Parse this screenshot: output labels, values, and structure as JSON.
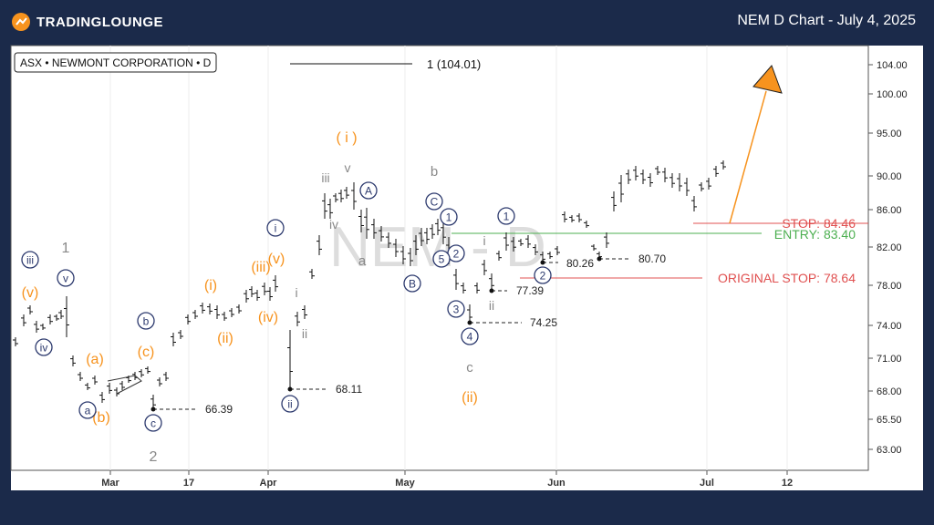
{
  "header": {
    "logo_text": "TRADINGLOUNGE",
    "title": "NEM D Chart - July 4, 2025",
    "logo_color": "#f7931e"
  },
  "colors": {
    "background": "#1b2a4a",
    "orange": "#f7931e",
    "navy": "#2d3a6e",
    "gray": "#888888",
    "stop_red": "#e05050",
    "entry_green": "#4caf50"
  },
  "chart_data": {
    "type": "ohlc",
    "symbol_label": "ASX • NEWMONT CORPORATION • D",
    "watermark": "NEM - D",
    "y_ticks": [
      "104.00",
      "100.00",
      "95.00",
      "90.00",
      "86.00",
      "82.00",
      "78.00",
      "74.00",
      "71.00",
      "68.00",
      "65.50",
      "63.00"
    ],
    "x_ticks": [
      "Mar",
      "17",
      "Apr",
      "May",
      "Jun",
      "Jul",
      "12"
    ],
    "horizontal_levels": [
      {
        "name": "stop",
        "label": "STOP: 84.46",
        "value": 84.46
      },
      {
        "name": "entry",
        "label": "ENTRY: 83.40",
        "value": 83.4
      },
      {
        "name": "original-stop",
        "label": "ORIGINAL STOP: 78.64",
        "value": 78.64
      }
    ],
    "target_label": "1 (104.01)",
    "target_value": 104.01,
    "price_markers": [
      {
        "label": "66.39",
        "value": 66.39
      },
      {
        "label": "68.11",
        "value": 68.11
      },
      {
        "label": "74.25",
        "value": 74.25
      },
      {
        "label": "77.39",
        "value": 77.39
      },
      {
        "label": "80.26",
        "value": 80.26
      },
      {
        "label": "80.70",
        "value": 80.7
      }
    ],
    "wave_labels": {
      "gray": [
        "1",
        "2",
        "iii",
        "iv",
        "v",
        "a",
        "b",
        "c",
        "i",
        "ii",
        "i",
        "ii"
      ],
      "orange": [
        "(v)",
        "(a)",
        "(b)",
        "(c)",
        "(i)",
        "(ii)",
        "(iii)",
        "(iv)",
        "(v)",
        "( i )",
        "(ii)"
      ],
      "navy_circled": [
        "iii",
        "iv",
        "v",
        "a",
        "b",
        "c",
        "i",
        "ii",
        "A",
        "B",
        "C",
        "1",
        "2",
        "3",
        "4",
        "5",
        "1",
        "2"
      ]
    }
  }
}
